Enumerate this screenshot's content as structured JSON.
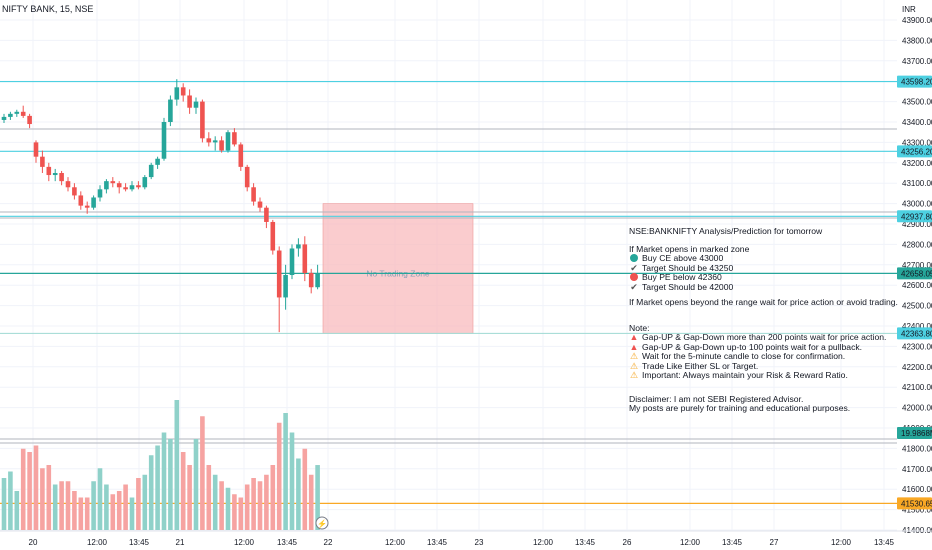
{
  "header": {
    "symbol_title": "NIFTY BANK, 15, NSE",
    "currency": "INR"
  },
  "price_axis": {
    "ticks": [
      "43900.00",
      "43800.00",
      "43700.00",
      "43600.00",
      "43500.00",
      "43400.00",
      "43300.00",
      "43200.00",
      "43100.00",
      "43000.00",
      "42900.00",
      "42800.00",
      "42700.00",
      "42600.00",
      "42500.00",
      "42400.00",
      "42300.00",
      "42200.00",
      "42100.00",
      "42000.00",
      "41900.00",
      "41800.00",
      "41700.00",
      "41600.00",
      "41500.00",
      "41400.00"
    ],
    "badges": [
      {
        "label": "43598.20",
        "value": 43598.2,
        "color": "#4dd0e1"
      },
      {
        "label": "43256.20",
        "value": 43256.2,
        "color": "#4dd0e1"
      },
      {
        "label": "42937.80",
        "value": 42937.8,
        "color": "#4dd0e1"
      },
      {
        "label": "42658.05",
        "value": 42658.05,
        "color": "#26a69a"
      },
      {
        "label": "42363.80",
        "value": 42363.8,
        "color": "#4dd0e1"
      },
      {
        "label": "41530.65",
        "value": 41530.65,
        "color": "#f9a825"
      }
    ],
    "volume_badge": {
      "label": "19.9868M",
      "color": "#26a69a"
    }
  },
  "time_axis": [
    "20",
    "12:00",
    "13:45",
    "21",
    "12:00",
    "13:45",
    "22",
    "12:00",
    "13:45",
    "23",
    "12:00",
    "13:45",
    "26",
    "12:00",
    "13:45",
    "27",
    "12:00",
    "13:45"
  ],
  "zone": {
    "label": "No Trading Zone",
    "top": 43000,
    "bottom": 42363.8,
    "color": "#f8bbbd"
  },
  "analysis": {
    "heading": "NSE:BANKNIFTY Analysis/Prediction for tomorrow",
    "if_marked": "If Market opens in marked zone",
    "items": [
      {
        "icon": "green-circle",
        "text": "Buy CE above 43000"
      },
      {
        "icon": "check",
        "text": "Target Should be 43250"
      },
      {
        "icon": "red-circle",
        "text": "Buy PE below 42360"
      },
      {
        "icon": "check",
        "text": "Target Should be 42000"
      }
    ],
    "beyond": "If Market opens beyond the range wait for price action or avoid trading.",
    "note_title": "Note:",
    "notes": [
      {
        "icon": "flame",
        "text": "Gap-UP & Gap-Down more than 200 points wait for price action."
      },
      {
        "icon": "flame",
        "text": "Gap-UP & Gap-Down up-to 100 points wait for a pullback."
      },
      {
        "icon": "warning",
        "text": "Wait for the 5-minute candle to close for confirmation."
      },
      {
        "icon": "warning",
        "text": "Trade Like Either SL or Target."
      },
      {
        "icon": "warning",
        "text": "Important: Always maintain your Risk & Reward Ratio."
      }
    ],
    "disclaimer_1": "Disclaimer: I am not SEBI Registered Advisor.",
    "disclaimer_2": "My posts are purely for training and educational purposes."
  },
  "colors": {
    "up": "#26a69a",
    "down": "#ef5350",
    "vol_up": "#8fd1c9",
    "vol_down": "#f6a3a1",
    "level": "#4dd0e1",
    "grid": "#f0f3fa"
  },
  "chart_data": {
    "type": "candlestick",
    "ohlc": [
      [
        43410,
        43440,
        43395,
        43425
      ],
      [
        43425,
        43450,
        43410,
        43440
      ],
      [
        43440,
        43460,
        43425,
        43450
      ],
      [
        43450,
        43480,
        43420,
        43430
      ],
      [
        43430,
        43440,
        43370,
        43390
      ],
      [
        43300,
        43310,
        43200,
        43230
      ],
      [
        43230,
        43260,
        43150,
        43180
      ],
      [
        43180,
        43200,
        43110,
        43140
      ],
      [
        43140,
        43170,
        43110,
        43150
      ],
      [
        43150,
        43160,
        43090,
        43110
      ],
      [
        43110,
        43130,
        43060,
        43080
      ],
      [
        43080,
        43100,
        43020,
        43040
      ],
      [
        43040,
        43060,
        42970,
        42990
      ],
      [
        42990,
        43010,
        42950,
        42980
      ],
      [
        42980,
        43040,
        42970,
        43030
      ],
      [
        43030,
        43090,
        43010,
        43070
      ],
      [
        43070,
        43120,
        43050,
        43110
      ],
      [
        43110,
        43130,
        43080,
        43100
      ],
      [
        43100,
        43110,
        43050,
        43080
      ],
      [
        43080,
        43100,
        43060,
        43070
      ],
      [
        43070,
        43110,
        43060,
        43090
      ],
      [
        43090,
        43110,
        43070,
        43080
      ],
      [
        43080,
        43140,
        43070,
        43130
      ],
      [
        43130,
        43200,
        43120,
        43190
      ],
      [
        43190,
        43230,
        43170,
        43220
      ],
      [
        43220,
        43420,
        43210,
        43400
      ],
      [
        43400,
        43530,
        43380,
        43510
      ],
      [
        43510,
        43610,
        43480,
        43570
      ],
      [
        43570,
        43590,
        43500,
        43530
      ],
      [
        43530,
        43560,
        43440,
        43470
      ],
      [
        43470,
        43520,
        43440,
        43500
      ],
      [
        43500,
        43510,
        43300,
        43320
      ],
      [
        43320,
        43350,
        43280,
        43300
      ],
      [
        43300,
        43330,
        43260,
        43310
      ],
      [
        43310,
        43330,
        43250,
        43260
      ],
      [
        43260,
        43360,
        43250,
        43350
      ],
      [
        43350,
        43370,
        43280,
        43290
      ],
      [
        43290,
        43300,
        43160,
        43180
      ],
      [
        43180,
        43190,
        43060,
        43080
      ],
      [
        43080,
        43100,
        42990,
        43010
      ],
      [
        43010,
        43030,
        42960,
        42980
      ],
      [
        42980,
        42990,
        42880,
        42910
      ],
      [
        42910,
        42920,
        42750,
        42770
      ],
      [
        42770,
        42790,
        42370,
        42540
      ],
      [
        42540,
        42700,
        42480,
        42650
      ],
      [
        42650,
        42800,
        42630,
        42780
      ],
      [
        42780,
        42830,
        42740,
        42800
      ],
      [
        42800,
        42840,
        42620,
        42660
      ],
      [
        42660,
        42680,
        42560,
        42590
      ],
      [
        42590,
        42700,
        42580,
        42658.05
      ]
    ],
    "volume_millions": [
      16,
      18,
      12,
      25,
      24,
      26,
      19,
      20,
      14,
      15,
      15,
      12,
      10,
      10,
      15,
      19,
      14,
      11,
      12,
      14,
      10,
      16,
      17,
      23,
      26,
      30,
      28,
      40,
      24,
      20,
      28,
      35,
      20,
      17,
      15,
      13,
      11,
      10,
      14,
      16,
      15,
      17,
      20,
      33,
      36,
      30,
      22,
      25,
      17,
      19.9868
    ],
    "levels": [
      43598.2,
      43256.2,
      42937.8,
      42363.8,
      41530.65
    ],
    "last_price": 42658.05
  }
}
